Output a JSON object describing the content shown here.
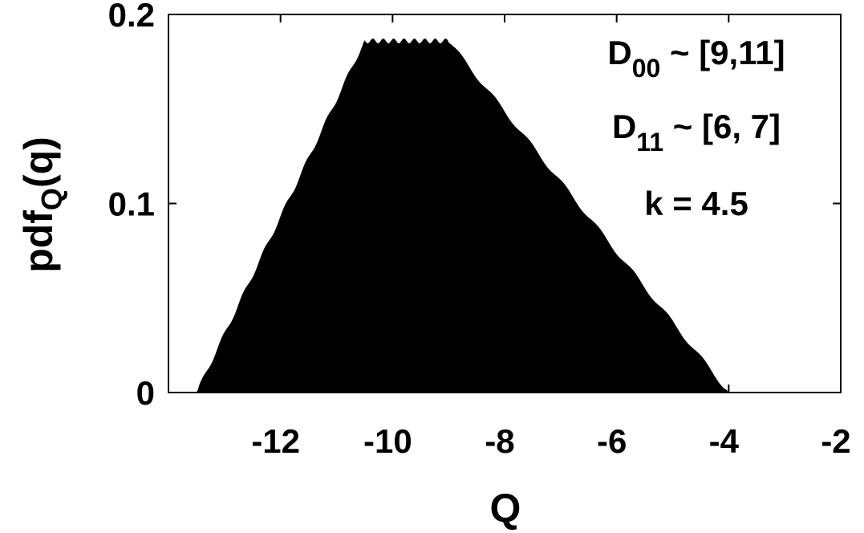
{
  "chart_data": {
    "type": "area",
    "xlabel": "Q",
    "ylabel": {
      "base": "pdf",
      "subscript": "Q",
      "suffix": "(q)"
    },
    "xlim": [
      -14,
      -2
    ],
    "ylim": [
      0,
      0.2
    ],
    "xticks": [
      -12,
      -10,
      -8,
      -6,
      -4,
      -2
    ],
    "yticks": [
      0,
      0.1,
      0.2
    ],
    "xtick_labels": [
      "-12",
      "-10",
      "-8",
      "-6",
      "-4",
      "-2"
    ],
    "ytick_labels": [
      "0",
      "0.1",
      "0.2"
    ],
    "grid": false,
    "fill_color": "#000000",
    "series": [
      {
        "x": [
          -13.5,
          -10.5,
          -9.0,
          -4.0
        ],
        "y": [
          0.0,
          0.186,
          0.186,
          0.0
        ]
      }
    ],
    "annotations": [
      {
        "base": "D",
        "subscript": "00",
        "text": " ~ [9,11]"
      },
      {
        "base": "D",
        "subscript": "11",
        "text": " ~ [6, 7]"
      },
      {
        "base": "",
        "subscript": "",
        "text": "k = 4.5"
      }
    ]
  }
}
